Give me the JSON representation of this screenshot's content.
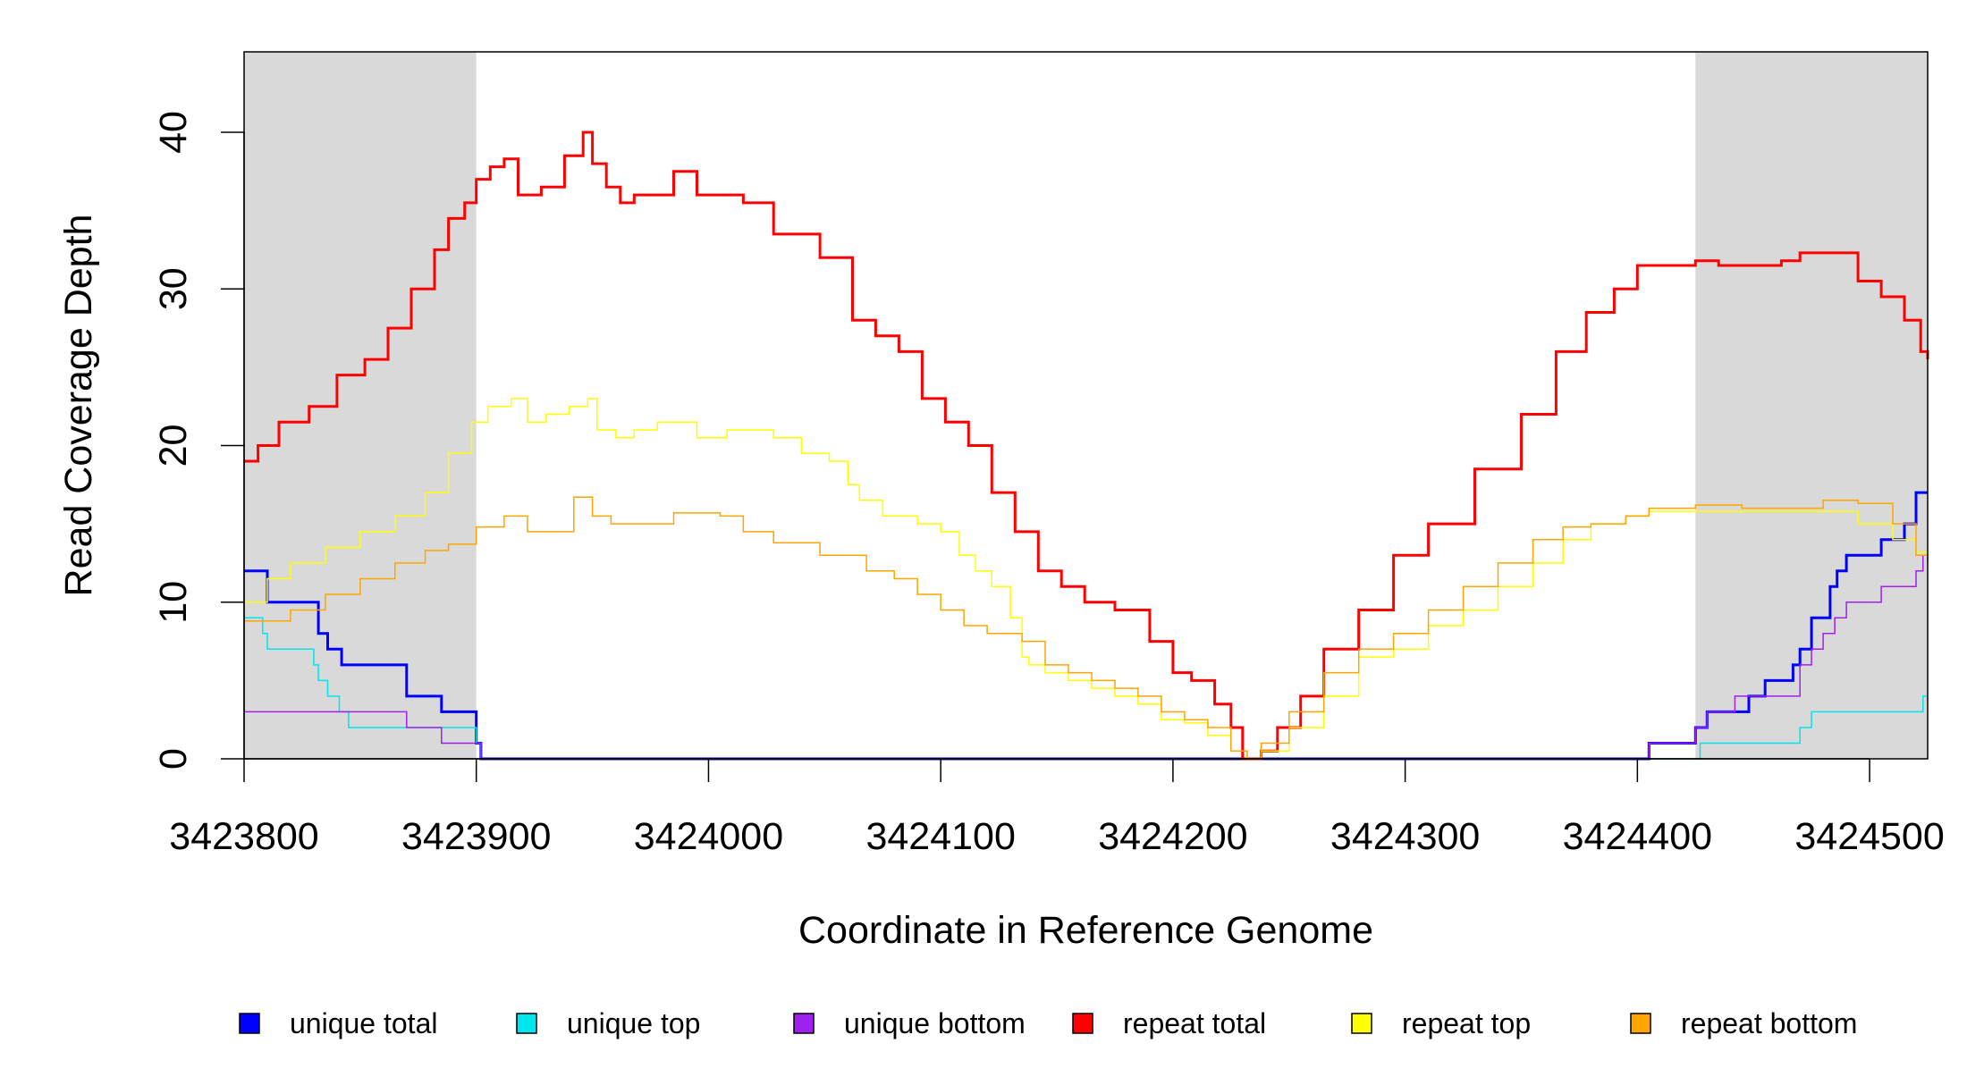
{
  "chart_data": {
    "type": "line",
    "title": "",
    "xlabel": "Coordinate in Reference Genome",
    "ylabel": "Read Coverage Depth",
    "xlim": [
      3423800,
      3424525
    ],
    "ylim": [
      0,
      45
    ],
    "x_ticks": [
      3423800,
      3423900,
      3424000,
      3424100,
      3424200,
      3424300,
      3424400,
      3424500
    ],
    "x_tick_labels": [
      "3423800",
      "3423900",
      "3424000",
      "3424100",
      "3424200",
      "3424300",
      "3424400",
      "3424500"
    ],
    "y_ticks": [
      0,
      10,
      20,
      30,
      40
    ],
    "y_tick_labels": [
      "0",
      "10",
      "20",
      "30",
      "40"
    ],
    "shaded_regions": [
      {
        "from": 3423800,
        "to": 3423900,
        "color": "#d9d9d9"
      },
      {
        "from": 3424425,
        "to": 3424525,
        "color": "#d9d9d9"
      }
    ],
    "grid": false,
    "legend_position": "bottom",
    "series": [
      {
        "name": "unique total",
        "color": "#0000ff",
        "line_width": 3,
        "step": true,
        "x": [
          3423800,
          3423810,
          3423832,
          3423836,
          3423842,
          3423870,
          3423885,
          3423900,
          3423902,
          3424405,
          3424425,
          3424430,
          3424442,
          3424448,
          3424455,
          3424467,
          3424470,
          3424475,
          3424480,
          3424483,
          3424486,
          3424490,
          3424505,
          3424515,
          3424520,
          3424525
        ],
        "y": [
          12,
          10,
          8,
          7,
          6,
          4,
          3,
          1,
          0,
          1,
          2,
          3,
          3,
          4,
          5,
          6,
          7,
          9,
          9,
          11,
          12,
          13,
          14,
          15,
          17,
          17
        ]
      },
      {
        "name": "unique top",
        "color": "#00e5ee",
        "line_width": 1.5,
        "step": true,
        "x": [
          3423800,
          3423808,
          3423810,
          3423830,
          3423832,
          3423836,
          3423841,
          3423845,
          3423900,
          3423902,
          3424425,
          3424427,
          3424468,
          3424470,
          3424475,
          3424520,
          3424523,
          3424525
        ],
        "y": [
          9,
          8,
          7,
          6,
          5,
          4,
          3,
          2,
          1,
          0,
          0,
          1,
          1,
          2,
          3,
          3,
          4,
          4
        ],
        "stops_at": 3424525
      },
      {
        "name": "unique bottom",
        "color": "#a020f0",
        "line_width": 1.5,
        "step": true,
        "x": [
          3423800,
          3423870,
          3423885,
          3423900,
          3423902,
          3424405,
          3424425,
          3424430,
          3424442,
          3424467,
          3424470,
          3424475,
          3424480,
          3424485,
          3424490,
          3424505,
          3424520,
          3424523,
          3424525
        ],
        "y": [
          3,
          2,
          1,
          1,
          0,
          1,
          2,
          3,
          4,
          4,
          6,
          7,
          8,
          9,
          10,
          11,
          12,
          13,
          13
        ]
      },
      {
        "name": "repeat total",
        "color": "#ff0000",
        "line_width": 3,
        "step": true,
        "x": [
          3423800,
          3423806,
          3423815,
          3423828,
          3423840,
          3423852,
          3423862,
          3423872,
          3423882,
          3423888,
          3423895,
          3423900,
          3423906,
          3423912,
          3423918,
          3423928,
          3423938,
          3423946,
          3423950,
          3423956,
          3423962,
          3423968,
          3423975,
          3423985,
          3423995,
          3424005,
          3424015,
          3424028,
          3424048,
          3424062,
          3424072,
          3424082,
          3424092,
          3424102,
          3424112,
          3424122,
          3424132,
          3424142,
          3424152,
          3424162,
          3424175,
          3424190,
          3424200,
          3424208,
          3424218,
          3424225,
          3424230,
          3424233,
          3424238,
          3424245,
          3424255,
          3424265,
          3424280,
          3424295,
          3424310,
          3424330,
          3424350,
          3424365,
          3424378,
          3424390,
          3424400,
          3424425,
          3424435,
          3424450,
          3424462,
          3424470,
          3424485,
          3424495,
          3424505,
          3424515,
          3424522,
          3424525
        ],
        "y": [
          19,
          20,
          21.5,
          22.5,
          24.5,
          25.5,
          27.5,
          30,
          32.5,
          34.5,
          35.5,
          37,
          37.8,
          38.3,
          36,
          36.5,
          38.5,
          40,
          38,
          36.5,
          35.5,
          36,
          36,
          37.5,
          36,
          36,
          35.5,
          33.5,
          32,
          28,
          27,
          26,
          23,
          21.5,
          20,
          17,
          14.5,
          12,
          11,
          10,
          9.5,
          7.5,
          5.5,
          5,
          3.5,
          2,
          0,
          0,
          0.5,
          2,
          4,
          7,
          9.5,
          13,
          15,
          18.5,
          22,
          26,
          28.5,
          30,
          31.5,
          31.8,
          31.5,
          31.5,
          31.8,
          32.3,
          32.3,
          30.5,
          29.5,
          28,
          26,
          25.5
        ]
      },
      {
        "name": "repeat top",
        "color": "#ffff00",
        "line_width": 1.5,
        "step": true,
        "x": [
          3423800,
          3423810,
          3423820,
          3423835,
          3423850,
          3423865,
          3423878,
          3423888,
          3423898,
          3423905,
          3423915,
          3423922,
          3423930,
          3423940,
          3423948,
          3423952,
          3423960,
          3423968,
          3423978,
          3423985,
          3423995,
          3424008,
          3424028,
          3424040,
          3424052,
          3424060,
          3424065,
          3424075,
          3424090,
          3424100,
          3424108,
          3424115,
          3424122,
          3424130,
          3424135,
          3424138,
          3424145,
          3424155,
          3424165,
          3424175,
          3424185,
          3424195,
          3424205,
          3424215,
          3424225,
          3424232,
          3424238,
          3424250,
          3424265,
          3424280,
          3424295,
          3424310,
          3424325,
          3424340,
          3424355,
          3424368,
          3424380,
          3424395,
          3424405,
          3424425,
          3424445,
          3424465,
          3424480,
          3424495,
          3424510,
          3424520,
          3424525
        ],
        "y": [
          10,
          11.5,
          12.5,
          13.5,
          14.5,
          15.5,
          17,
          19.5,
          21.5,
          22.5,
          23,
          21.5,
          22,
          22.5,
          23,
          21,
          20.5,
          21,
          21.5,
          21.5,
          20.5,
          21,
          20.5,
          19.5,
          19,
          17.5,
          16.5,
          15.5,
          15,
          14.5,
          13,
          12,
          11,
          9,
          6.5,
          6,
          5.5,
          5,
          4.5,
          4,
          3.5,
          2.5,
          2.3,
          1.5,
          0.5,
          0,
          0.5,
          2,
          4,
          6.5,
          7,
          8.5,
          9.5,
          11,
          12.5,
          14,
          15,
          15.5,
          15.8,
          15.8,
          15.8,
          15.8,
          15.8,
          15,
          14,
          13.2,
          13
        ]
      },
      {
        "name": "repeat bottom",
        "color": "#ffa500",
        "line_width": 1.5,
        "step": true,
        "x": [
          3423800,
          3423820,
          3423835,
          3423850,
          3423865,
          3423878,
          3423888,
          3423900,
          3423912,
          3423922,
          3423935,
          3423942,
          3423950,
          3423958,
          3423968,
          3423985,
          3424005,
          3424015,
          3424028,
          3424048,
          3424068,
          3424080,
          3424090,
          3424100,
          3424110,
          3424120,
          3424135,
          3424145,
          3424155,
          3424165,
          3424175,
          3424185,
          3424195,
          3424205,
          3424215,
          3424225,
          3424232,
          3424238,
          3424250,
          3424265,
          3424280,
          3424295,
          3424310,
          3424325,
          3424340,
          3424355,
          3424368,
          3424380,
          3424395,
          3424405,
          3424425,
          3424445,
          3424465,
          3424480,
          3424495,
          3424510,
          3424520,
          3424525
        ],
        "y": [
          8.8,
          9.5,
          10.5,
          11.5,
          12.5,
          13.3,
          13.7,
          14.8,
          15.5,
          14.5,
          14.5,
          16.7,
          15.5,
          15,
          15,
          15.7,
          15.5,
          14.5,
          13.8,
          13,
          12,
          11.5,
          10.5,
          9.5,
          8.5,
          8,
          7.5,
          6,
          5.5,
          5,
          4.5,
          4,
          3,
          2.5,
          2,
          0.5,
          0,
          1,
          3,
          5.5,
          7,
          8,
          9.5,
          11,
          12.5,
          14,
          14.8,
          15,
          15.5,
          16,
          16.2,
          16,
          16,
          16.5,
          16.3,
          15,
          13,
          12.5
        ]
      }
    ]
  },
  "legend": {
    "items": [
      {
        "label": "unique total",
        "color": "#0000ff"
      },
      {
        "label": "unique top",
        "color": "#00e5ee"
      },
      {
        "label": "unique bottom",
        "color": "#a020f0"
      },
      {
        "label": "repeat total",
        "color": "#ff0000"
      },
      {
        "label": "repeat top",
        "color": "#ffff00"
      },
      {
        "label": "repeat bottom",
        "color": "#ffa500"
      }
    ]
  }
}
